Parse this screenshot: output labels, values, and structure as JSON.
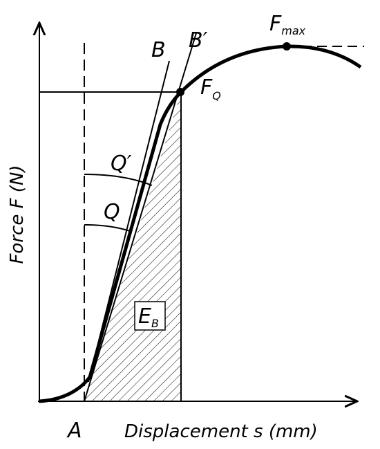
{
  "axes": {
    "x_label": "Displacement s (mm)",
    "y_label": "Force F (N)"
  },
  "points": {
    "A": "A",
    "B": "B",
    "B_prime": "B′",
    "F_max": {
      "base": "F",
      "sub": "max"
    },
    "F_Q": {
      "base": "F",
      "sub": "Q"
    },
    "Q_prime": "Q′",
    "Q": "Q",
    "E_B": {
      "base": "E",
      "sub": "B"
    }
  }
}
